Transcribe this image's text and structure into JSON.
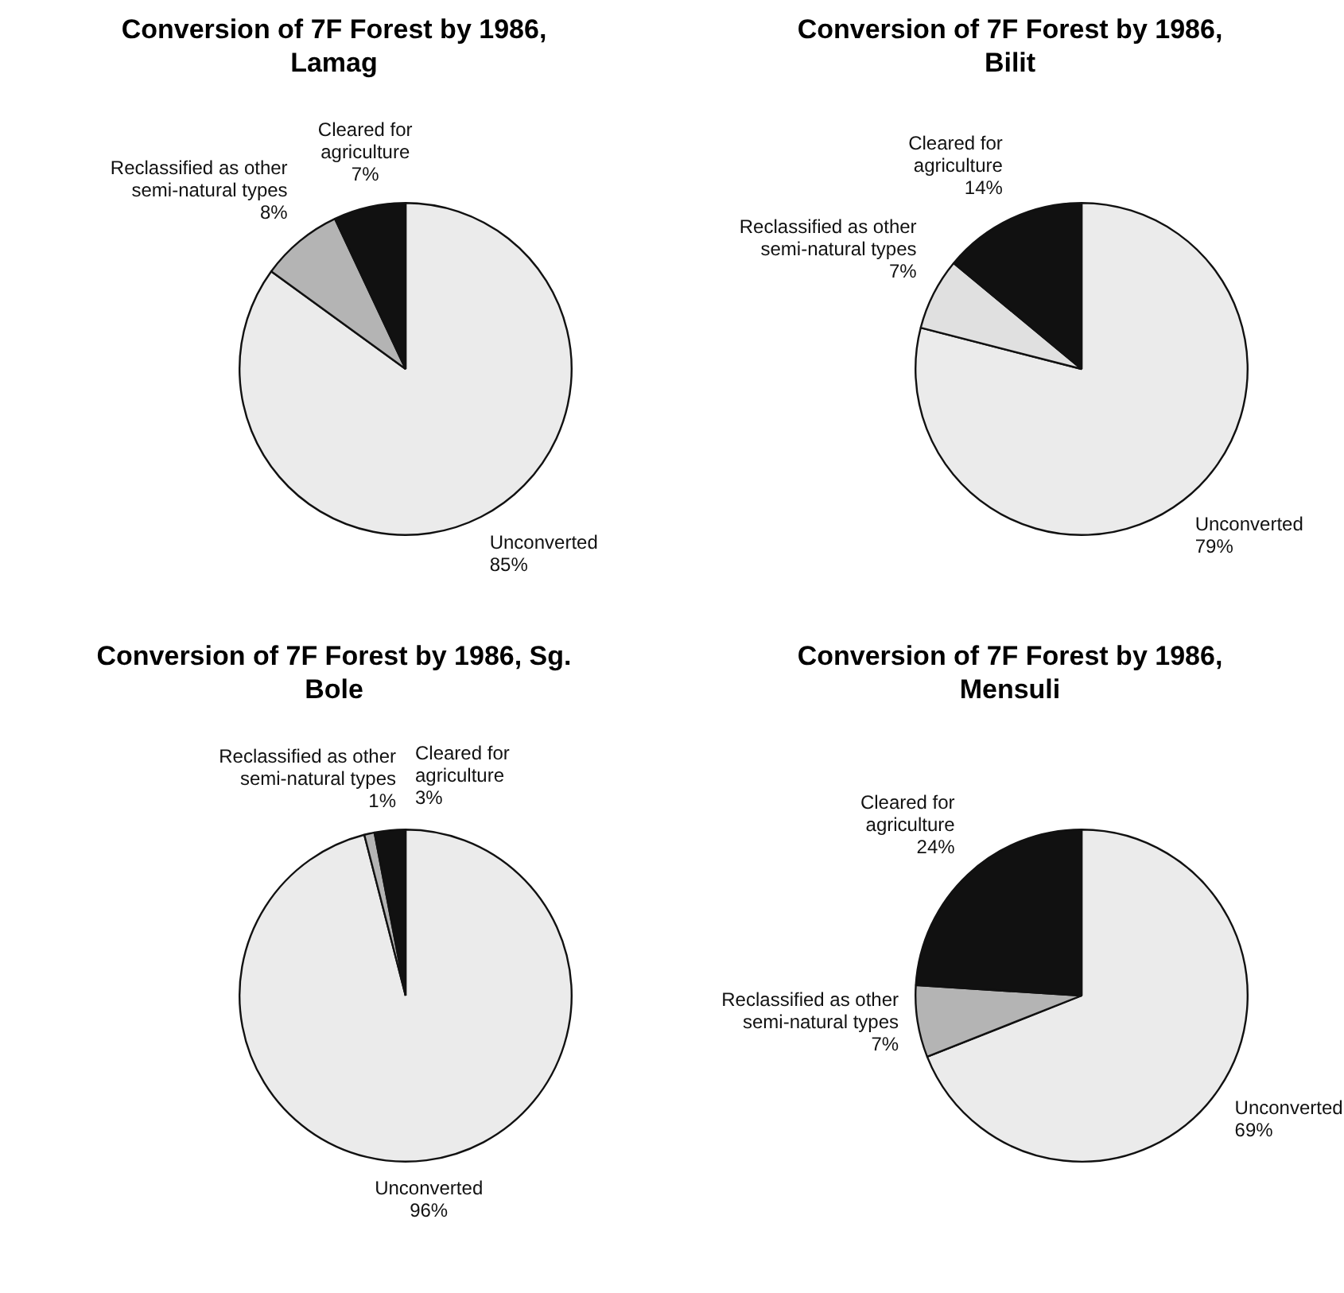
{
  "chart_data": [
    {
      "type": "pie",
      "title": "Conversion of 7F Forest by 1986, Lamag",
      "categories": [
        "Unconverted",
        "Reclassified as other semi-natural types",
        "Cleared for agriculture"
      ],
      "values": [
        85,
        8,
        7
      ],
      "value_labels": [
        "85%",
        "8%",
        "7%"
      ],
      "colors": [
        "#ebebeb",
        "#b4b4b4",
        "#111111"
      ]
    },
    {
      "type": "pie",
      "title": "Conversion of 7F Forest by 1986, Bilit",
      "categories": [
        "Unconverted",
        "Reclassified as other semi-natural types",
        "Cleared for agriculture"
      ],
      "values": [
        79,
        7,
        14
      ],
      "value_labels": [
        "79%",
        "7%",
        "14%"
      ],
      "colors": [
        "#ebebeb",
        "#e0e0e0",
        "#111111"
      ]
    },
    {
      "type": "pie",
      "title": "Conversion of 7F Forest by 1986, Sg. Bole",
      "categories": [
        "Unconverted",
        "Reclassified as other semi-natural types",
        "Cleared for agriculture"
      ],
      "values": [
        96,
        1,
        3
      ],
      "value_labels": [
        "96%",
        "1%",
        "3%"
      ],
      "colors": [
        "#ebebeb",
        "#b4b4b4",
        "#111111"
      ]
    },
    {
      "type": "pie",
      "title": "Conversion of 7F Forest by 1986, Mensuli",
      "categories": [
        "Unconverted",
        "Reclassified as other semi-natural types",
        "Cleared for agriculture"
      ],
      "values": [
        69,
        7,
        24
      ],
      "value_labels": [
        "69%",
        "7%",
        "24%"
      ],
      "colors": [
        "#ebebeb",
        "#b4b4b4",
        "#111111"
      ]
    }
  ]
}
